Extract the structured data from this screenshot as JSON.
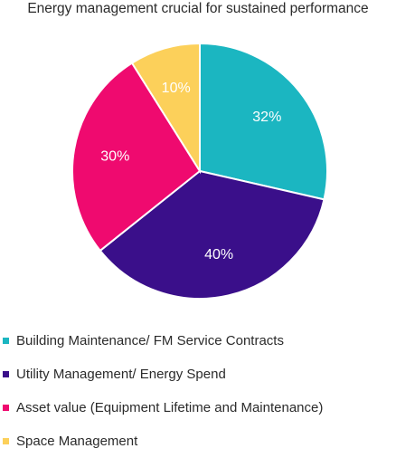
{
  "chart_data": {
    "type": "pie",
    "title": "Energy management crucial for sustained performance",
    "legend_position": "bottom",
    "slices": [
      {
        "name": "Building Maintenance/ FM Service Contracts",
        "value": 32,
        "label": "32%",
        "color": "#1bb6c1"
      },
      {
        "name": "Utility Management/ Energy Spend",
        "value": 40,
        "label": "40%",
        "color": "#3a0f8a"
      },
      {
        "name": "Asset value (Equipment Lifetime and Maintenance)",
        "value": 30,
        "label": "30%",
        "color": "#ef0a6f"
      },
      {
        "name": "Space Management",
        "value": 10,
        "label": "10%",
        "color": "#fcd05a"
      }
    ]
  }
}
